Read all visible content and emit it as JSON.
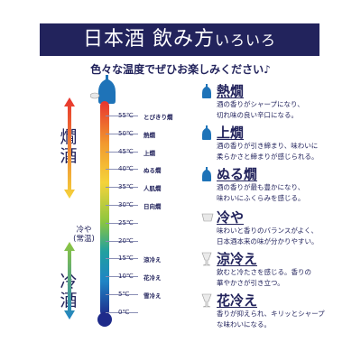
{
  "banner": {
    "title_main": "日本酒 飲み方",
    "title_small": "いろいろ"
  },
  "subtitle": "色々な温度でぜひお楽しみください♪",
  "side_labels": {
    "warm": "燗酒",
    "cold": "冷酒"
  },
  "thermometer": {
    "colors": [
      "#e8342e",
      "#f29a2e",
      "#f5d33a",
      "#8dc63f",
      "#21a0a0",
      "#1f84c5",
      "#1e2a8a"
    ],
    "ticks": [
      {
        "temp": "55℃",
        "label": "とびきり燗"
      },
      {
        "temp": "50℃",
        "label": "熱燗"
      },
      {
        "temp": "45℃",
        "label": "上燗"
      },
      {
        "temp": "40℃",
        "label": "ぬる燗"
      },
      {
        "temp": "35℃",
        "label": "人肌燗"
      },
      {
        "temp": "30℃",
        "label": "日向燗"
      },
      {
        "temp": "25℃",
        "label": ""
      },
      {
        "temp": "20℃",
        "label": ""
      },
      {
        "temp": "15℃",
        "label": "涼冷え"
      },
      {
        "temp": "10℃",
        "label": "花冷え"
      },
      {
        "temp": "5℃",
        "label": "雪冷え"
      },
      {
        "temp": "0℃",
        "label": ""
      }
    ],
    "range_label_line1": "冷や",
    "range_label_line2": "(常温)"
  },
  "entries": [
    {
      "icon": "tokkuri-icon",
      "title": "熱燗",
      "desc": "酒の香りがシャープになり、\n切れ味の良い辛口になる。"
    },
    {
      "icon": "tokkuri-icon",
      "title": "上燗",
      "desc": "酒の香りが引き締まり、味わいに\n柔らかさと締まりが感じられる。"
    },
    {
      "icon": "tokkuri-icon",
      "title": "ぬる燗",
      "desc": "酒の香りが最も豊かになり、\n味わいにふくらみを感じる。"
    },
    {
      "icon": "ochoko-icon",
      "title": "冷や",
      "desc": "味わいと香りのバランスがよく、\n日本酒本来の味が分かりやすい。"
    },
    {
      "icon": "glass-icon",
      "title": "涼冷え",
      "desc": "飲むと冷たさを感じる。香りの\n華やかさが引き立つ。"
    },
    {
      "icon": "glass-icon",
      "title": "花冷え",
      "desc": "香りが抑えられ、キリッとシャープ\nな味わいになる。"
    }
  ]
}
